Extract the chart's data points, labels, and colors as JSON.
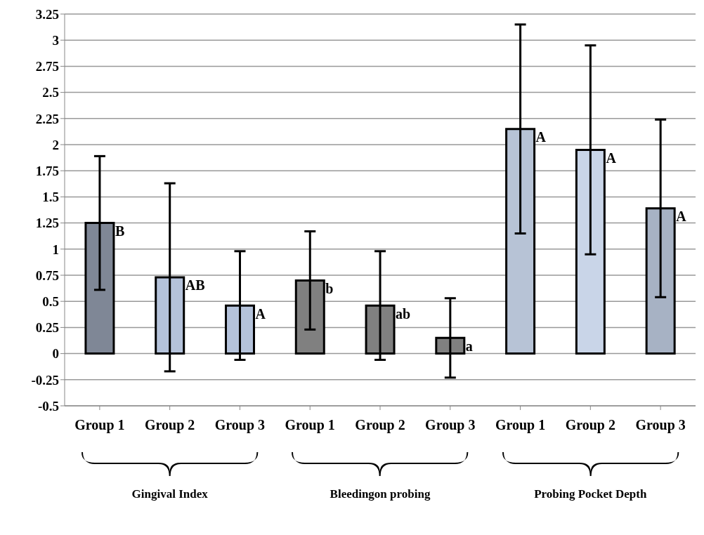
{
  "chart_data": {
    "type": "bar",
    "categories": [
      "Group 1",
      "Group 2",
      "Group 3",
      "Group 1",
      "Group 2",
      "Group 3",
      "Group 1",
      "Group 2",
      "Group 3"
    ],
    "values": [
      1.25,
      0.73,
      0.46,
      0.7,
      0.46,
      0.15,
      2.15,
      1.95,
      1.39
    ],
    "errors": [
      0.64,
      0.9,
      0.52,
      0.47,
      0.52,
      0.38,
      1.0,
      1.0,
      0.85
    ],
    "colors": [
      "#7f8796",
      "#b4c2da",
      "#b4c2da",
      "#808080",
      "#808080",
      "#808080",
      "#b7c3d6",
      "#c9d5e8",
      "#a7b2c4"
    ],
    "value_labels": [
      "B",
      "AB",
      "A",
      "b",
      "ab",
      "a",
      "A",
      "A",
      "A"
    ],
    "ylim": [
      -0.5,
      3.25
    ],
    "yticks": [
      -0.5,
      -0.25,
      0,
      0.25,
      0.5,
      0.75,
      1,
      1.25,
      1.5,
      1.75,
      2,
      2.25,
      2.5,
      2.75,
      3,
      3.25
    ],
    "grid": "y",
    "annotations": [
      "Gingival Index",
      "Bleedingon probing",
      "Probing Pocket Depth"
    ]
  }
}
